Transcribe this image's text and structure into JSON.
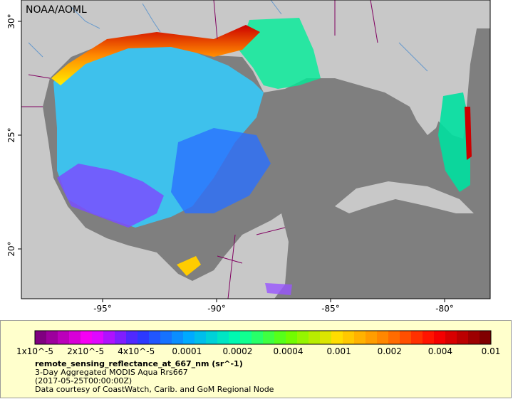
{
  "map": {
    "credit": "NOAA/AOML",
    "lon_ticks": [
      "-95°",
      "-90°",
      "-85°",
      "-80°"
    ],
    "lat_ticks": [
      "30°",
      "25°",
      "20°"
    ]
  },
  "legend": {
    "colorbar_labels": [
      "1x10^-5",
      "2x10^-5",
      "4x10^-5",
      "0.0001",
      "0.0002",
      "0.0004",
      "0.001",
      "0.002",
      "0.004",
      "0.01"
    ],
    "variable_title": "remote_sensing_reflectance_at_667_nm (sr^-1)",
    "line1": "3-Day Aggregated MODIS Aqua Rrs667",
    "line2": "(2017-05-25T00:00:00Z)",
    "line3": "Data courtesy of CoastWatch, Carib. and GoM Regional Node"
  },
  "colors": {
    "ocean": "#7f7f7f",
    "land": "#c8c8c8",
    "legend_bg": "#ffffcc",
    "colorbar": [
      "#800080",
      "#ff00ff",
      "#3030ff",
      "#00aaff",
      "#00ffaa",
      "#66ff00",
      "#ffdd00",
      "#ff8000",
      "#ff0000",
      "#800000"
    ]
  }
}
